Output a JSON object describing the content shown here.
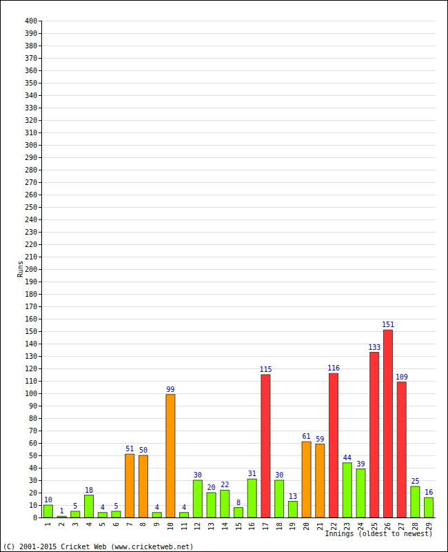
{
  "chart_data": {
    "type": "bar",
    "y_label": "Runs",
    "x_label": "Innings (oldest to newest)",
    "annotations": [
      "(C) 2001-2015 Cricket Web (www.cricketweb.net)"
    ],
    "categories": [
      "1",
      "2",
      "3",
      "4",
      "5",
      "6",
      "7",
      "8",
      "9",
      "10",
      "11",
      "12",
      "13",
      "14",
      "15",
      "16",
      "17",
      "18",
      "19",
      "20",
      "21",
      "22",
      "23",
      "24",
      "25",
      "26",
      "27",
      "28",
      "29"
    ],
    "values": [
      10,
      1,
      5,
      18,
      4,
      5,
      51,
      50,
      4,
      99,
      4,
      30,
      20,
      22,
      8,
      31,
      115,
      30,
      13,
      61,
      59,
      116,
      44,
      39,
      133,
      151,
      109,
      25,
      16
    ],
    "colors": [
      "#80ff00",
      "#80ff00",
      "#80ff00",
      "#80ff00",
      "#80ff00",
      "#80ff00",
      "#ff9900",
      "#ff9900",
      "#80ff00",
      "#ff9900",
      "#80ff00",
      "#80ff00",
      "#80ff00",
      "#80ff00",
      "#80ff00",
      "#80ff00",
      "#ff3333",
      "#80ff00",
      "#80ff00",
      "#ff9900",
      "#ff9900",
      "#ff3333",
      "#80ff00",
      "#80ff00",
      "#ff3333",
      "#ff3333",
      "#ff3333",
      "#80ff00",
      "#80ff00"
    ],
    "ylim": [
      0,
      400
    ],
    "yticks": [
      0,
      10,
      20,
      30,
      40,
      50,
      60,
      70,
      80,
      90,
      100,
      110,
      120,
      130,
      140,
      150,
      160,
      170,
      180,
      190,
      200,
      210,
      220,
      230,
      240,
      250,
      260,
      270,
      280,
      290,
      300,
      310,
      320,
      330,
      340,
      350,
      360,
      370,
      380,
      390,
      400
    ],
    "grid": true,
    "data_labels": true
  }
}
